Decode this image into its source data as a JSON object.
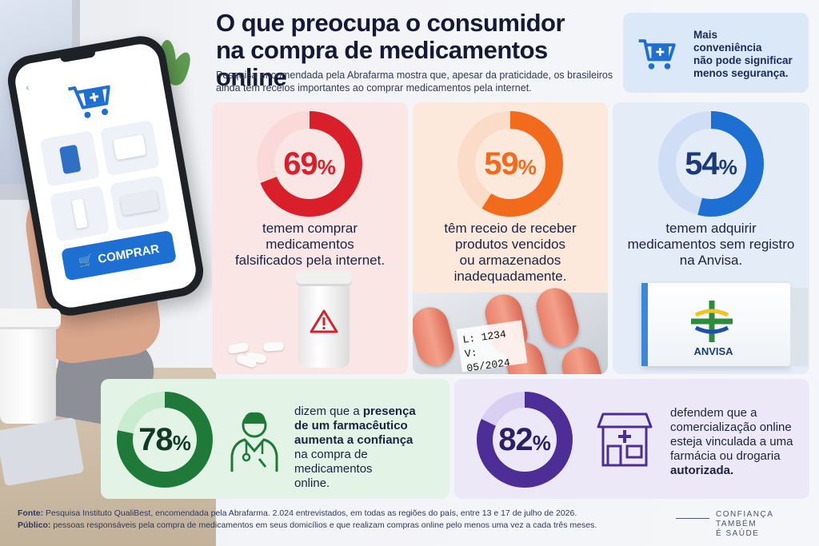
{
  "header": {
    "title_line1": "O que preocupa o consumidor",
    "title_line2": "na compra de medicamentos online",
    "subtitle": "Pesquisa encomendada pela Abrafarma mostra que, apesar da praticidade, os brasileiros ainda têm receios importantes ao comprar medicamentos pela internet."
  },
  "promo": {
    "line1": "Mais",
    "line2": "conveniência",
    "line3": "não pode significar",
    "line4": "menos segurança.",
    "icon": "cart-plus-icon"
  },
  "phone": {
    "buy_label": "COMPRAR"
  },
  "colors": {
    "red": "#d9202a",
    "orange": "#f26b1d",
    "blue": "#1d6fd1",
    "green": "#1f7a3a",
    "purple": "#4c2e96"
  },
  "stats": [
    {
      "value": 69,
      "sign": "%",
      "lines": [
        "temem comprar",
        "medicamentos",
        "falsificados pela internet."
      ]
    },
    {
      "value": 59,
      "sign": "%",
      "lines": [
        "têm receio de receber",
        "produtos vencidos",
        "ou armazenados",
        "inadequadamente."
      ]
    },
    {
      "value": 54,
      "sign": "%",
      "lines": [
        "temem adquirir",
        "medicamentos sem registro",
        "na Anvisa."
      ]
    },
    {
      "value": 78,
      "sign": "%",
      "line1_pre": "dizem que a ",
      "line1_bold": "presença",
      "line2_bold": "de um farmacêutico",
      "line3_bold": "aumenta a confiança",
      "line4": "na compra de medicamentos",
      "line5": "online."
    },
    {
      "value": 82,
      "sign": "%",
      "line1": "defendem que a",
      "line2": "comercialização online",
      "line3": "esteja vinculada a uma",
      "line4": "farmácia ou drogaria",
      "line5_bold": "autorizada."
    }
  ],
  "lot_label": {
    "line1": "L: 1234",
    "line2": "V: 05/2024"
  },
  "anvisa_label": "ANVISA",
  "footer": {
    "fonte_label": "Fonte:",
    "fonte_text": " Pesquisa Instituto QualiBest, encomendada pela Abrafarma. 2.024 entrevistados, em todas as regiões do país, entre 13 e 17 de julho de 2026.",
    "publico_label": "Público:",
    "publico_text": " pessoas responsáveis pela compra de medicamentos em seus domicílios e que realizam compras online pelo menos uma vez a cada três meses."
  },
  "tagline": {
    "line1": "CONFIANÇA TAMBÉM",
    "line2": "É SAÚDE"
  }
}
